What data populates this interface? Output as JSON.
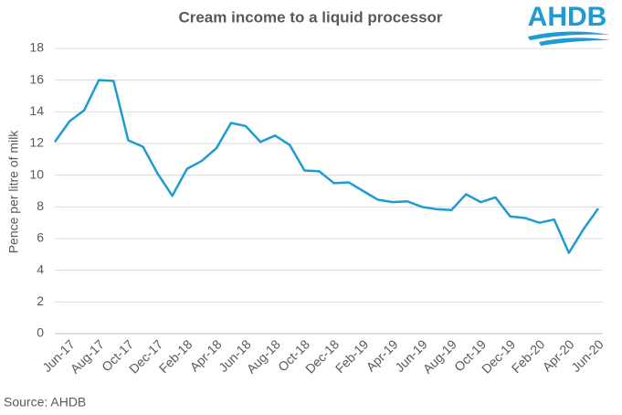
{
  "chart_data": {
    "type": "line",
    "title": "Cream income to a liquid processor",
    "y_label": "Pence per litre of milk",
    "source": "Source: AHDB",
    "logo": "AHDB",
    "categories": [
      null,
      "Jun-17",
      null,
      "Aug-17",
      null,
      "Oct-17",
      null,
      "Dec-17",
      null,
      "Feb-18",
      null,
      "Apr-18",
      null,
      "Jun-18",
      null,
      "Aug-18",
      null,
      "Oct-18",
      null,
      "Dec-18",
      null,
      "Feb-19",
      null,
      "Apr-19",
      null,
      "Jun-19",
      null,
      "Aug-19",
      null,
      "Oct-19",
      null,
      "Dec-19",
      null,
      "Feb-20",
      null,
      "Apr-20",
      null,
      "Jun-20"
    ],
    "series": [
      {
        "name": "Cream income",
        "color": "#1f9bd2",
        "values": [
          12.1,
          13.4,
          14.1,
          16.0,
          15.95,
          12.2,
          11.8,
          10.1,
          8.7,
          10.4,
          10.9,
          11.7,
          13.3,
          13.1,
          12.1,
          12.5,
          11.9,
          10.3,
          10.25,
          9.5,
          9.55,
          9.0,
          8.45,
          8.3,
          8.35,
          8.0,
          7.85,
          7.8,
          8.8,
          8.3,
          8.6,
          7.4,
          7.3,
          7.0,
          7.2,
          5.1,
          6.6,
          7.9
        ]
      }
    ],
    "ylim": [
      0,
      18
    ],
    "yticks": [
      0,
      2,
      4,
      6,
      8,
      10,
      12,
      14,
      16,
      18
    ],
    "grid": true
  }
}
